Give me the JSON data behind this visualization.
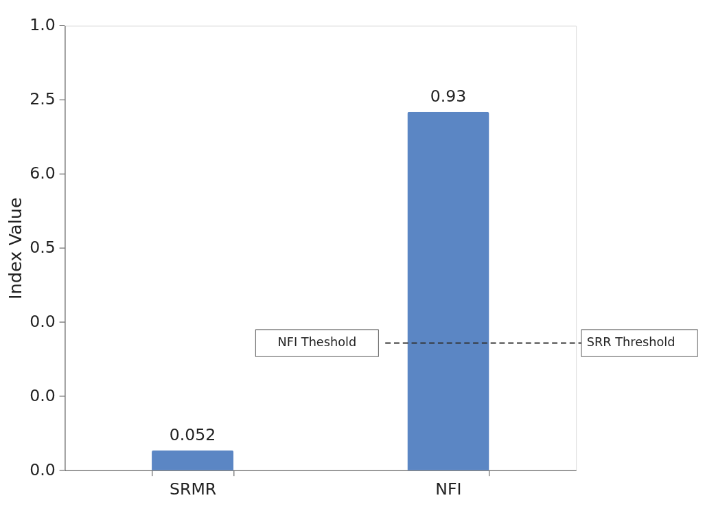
{
  "chart_data": {
    "type": "bar",
    "ylabel": "Index Value",
    "categories": [
      "SRMR",
      "NFI"
    ],
    "values": [
      0.052,
      0.93
    ],
    "data_labels": true,
    "color": "#5b86c4",
    "ref_lines": [
      {
        "axis": "y",
        "value": 0.33,
        "label": "NFI Theshold",
        "line_style": "dashed"
      }
    ],
    "annotations": [
      "0.0",
      "0.0",
      "0.0",
      "0.5",
      "6.0",
      "2.5",
      "1.0",
      "SRR Threshold"
    ]
  }
}
